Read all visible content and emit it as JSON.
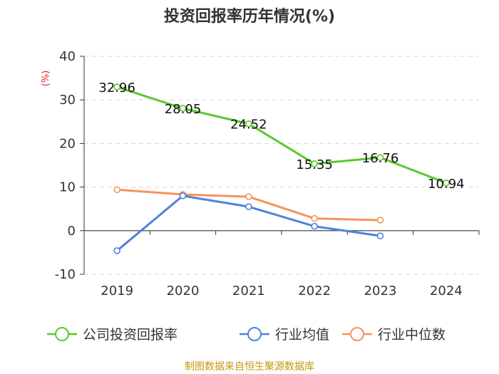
{
  "chart_data": {
    "type": "line",
    "title": "投资回报率历年情况(%)",
    "ylabel": "(%)",
    "categories": [
      "2019",
      "2020",
      "2021",
      "2022",
      "2023",
      "2024"
    ],
    "ylim": [
      -10,
      40
    ],
    "yticks": [
      40,
      30,
      20,
      10,
      0,
      -10
    ],
    "yticklabels": [
      "40",
      "30",
      "20",
      "10",
      "0",
      "-10"
    ],
    "series": [
      {
        "name": "公司投资回报率",
        "color": "#5cc72c",
        "values": [
          32.96,
          28.05,
          24.52,
          15.35,
          16.76,
          10.94
        ],
        "labels": [
          "32.96",
          "28.05",
          "24.52",
          "15.35",
          "16.76",
          "10.94"
        ]
      },
      {
        "name": "行业均值",
        "color": "#4f82dc",
        "values": [
          -4.6,
          8.0,
          5.5,
          1.0,
          -1.2,
          null
        ]
      },
      {
        "name": "行业中位数",
        "color": "#f5935c",
        "values": [
          9.4,
          8.3,
          7.8,
          2.8,
          2.4,
          null
        ]
      }
    ],
    "source": "制图数据来自恒生聚源数据库"
  }
}
